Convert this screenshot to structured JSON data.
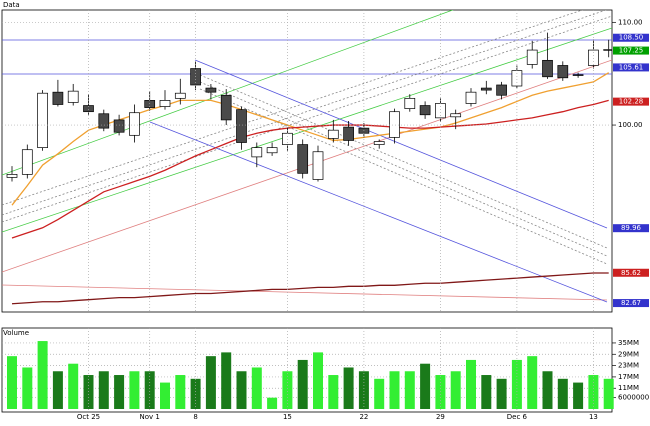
{
  "chart_data": [
    {
      "type": "candlestick",
      "title": "Data",
      "categories": [
        null,
        null,
        null,
        null,
        null,
        "Oct 25",
        null,
        null,
        null,
        "Nov 1",
        null,
        null,
        "8",
        null,
        null,
        null,
        null,
        null,
        "15",
        null,
        null,
        null,
        null,
        "22",
        null,
        null,
        null,
        null,
        "29",
        null,
        null,
        null,
        null,
        "Dec 6",
        null,
        null,
        null,
        null,
        "13",
        null
      ],
      "open": [
        94.9,
        95.2,
        97.8,
        103.2,
        102.2,
        101.9,
        101.1,
        100.5,
        99.0,
        102.4,
        101.8,
        102.6,
        105.5,
        103.6,
        102.9,
        101.5,
        96.9,
        97.3,
        98.1,
        98.1,
        94.7,
        98.7,
        99.8,
        99.7,
        98.1,
        98.8,
        101.6,
        101.9,
        100.7,
        100.8,
        102.1,
        103.6,
        103.9,
        103.8,
        105.9,
        106.3,
        105.8,
        104.9,
        105.8,
        107.3
      ],
      "high": [
        96.0,
        98.1,
        103.4,
        104.4,
        104.0,
        103.0,
        101.5,
        101.0,
        102.0,
        103.3,
        103.4,
        104.5,
        106.2,
        104.0,
        103.5,
        101.8,
        98.3,
        98.3,
        99.8,
        98.6,
        98.0,
        100.5,
        100.4,
        100.2,
        98.6,
        101.6,
        103.0,
        102.3,
        102.6,
        101.5,
        103.6,
        104.3,
        104.2,
        105.8,
        108.2,
        109.0,
        106.2,
        105.1,
        108.3,
        108.3
      ],
      "low": [
        94.5,
        94.8,
        97.5,
        101.8,
        101.9,
        101.0,
        99.4,
        99.0,
        98.3,
        101.4,
        101.5,
        102.0,
        103.4,
        102.5,
        100.0,
        97.6,
        95.9,
        97.0,
        97.5,
        94.8,
        94.5,
        98.3,
        98.0,
        98.8,
        97.7,
        98.2,
        101.3,
        100.6,
        100.3,
        99.6,
        101.8,
        103.0,
        102.5,
        103.6,
        105.5,
        104.5,
        104.3,
        104.6,
        105.5,
        106.6
      ],
      "close": [
        95.2,
        97.6,
        103.1,
        102.0,
        103.3,
        101.3,
        99.7,
        99.3,
        101.2,
        101.7,
        102.4,
        103.1,
        103.9,
        103.2,
        100.5,
        98.3,
        97.8,
        97.8,
        99.2,
        95.3,
        97.4,
        99.5,
        98.5,
        99.2,
        98.4,
        101.3,
        102.6,
        101.0,
        102.1,
        101.1,
        103.2,
        103.4,
        102.9,
        105.3,
        107.3,
        104.7,
        104.6,
        104.85,
        107.3,
        107.35
      ],
      "up_color": "#ffffff",
      "down_color": "#4a4a4a",
      "overlays": [
        {
          "color": "#f0a030",
          "values": [
            92.2,
            94.1,
            96.1,
            97.2,
            98.4,
            99.5,
            100.0,
            100.5,
            101.0,
            101.5,
            101.9,
            102.4,
            102.4,
            102.4,
            102.0,
            101.5,
            101.0,
            100.5,
            100.0,
            99.5,
            99.0,
            98.5,
            98.6,
            98.8,
            99.0,
            99.2,
            99.4,
            99.6,
            99.8,
            100.2,
            100.7,
            101.2,
            101.7,
            102.3,
            102.9,
            103.3,
            103.6,
            103.9,
            104.2,
            105.1
          ]
        },
        {
          "color": "#cc2020",
          "values": [
            89.0,
            89.5,
            90.0,
            90.8,
            91.7,
            92.6,
            93.5,
            94.0,
            94.5,
            95.0,
            95.6,
            96.3,
            97.0,
            97.6,
            98.2,
            98.8,
            99.2,
            99.5,
            99.7,
            99.8,
            99.9,
            100.0,
            100.0,
            100.0,
            99.9,
            99.8,
            99.7,
            99.7,
            99.8,
            99.9,
            100.0,
            100.1,
            100.3,
            100.5,
            100.7,
            101.0,
            101.3,
            101.7,
            102.0,
            102.4
          ]
        },
        {
          "color": "#801818",
          "values": [
            82.6,
            82.7,
            82.8,
            82.8,
            82.9,
            83.0,
            83.1,
            83.2,
            83.2,
            83.3,
            83.4,
            83.5,
            83.6,
            83.6,
            83.7,
            83.8,
            83.9,
            84.0,
            84.0,
            84.1,
            84.2,
            84.2,
            84.3,
            84.3,
            84.4,
            84.4,
            84.5,
            84.6,
            84.6,
            84.7,
            84.8,
            84.9,
            85.0,
            85.1,
            85.2,
            85.3,
            85.4,
            85.5,
            85.6,
            85.6
          ]
        }
      ],
      "ylim": [
        81.8,
        111.2
      ],
      "yticks": [
        {
          "value": 110,
          "label": "110.00"
        },
        {
          "value": 100,
          "label": "100.00"
        }
      ],
      "markers": [
        {
          "value": 108.5,
          "label": "108.50",
          "color": "#3333cc"
        },
        {
          "value": 107.25,
          "label": "107.25",
          "color": "#00a000"
        },
        {
          "value": 105.61,
          "label": "105.61",
          "color": "#3333cc"
        },
        {
          "value": 102.28,
          "label": "102.28",
          "color": "#cc2020"
        },
        {
          "value": 89.96,
          "label": "89.96",
          "color": "#3333cc"
        },
        {
          "value": 85.62,
          "label": "85.62",
          "color": "#cc2020"
        },
        {
          "value": 82.67,
          "label": "82.67",
          "color": "#3333cc"
        }
      ],
      "grid": true
    },
    {
      "type": "bar",
      "title": "Volume",
      "values": [
        28000000,
        22000000,
        36000000,
        20000000,
        24000000,
        18000000,
        20000000,
        18000000,
        20000000,
        20000000,
        14000000,
        18000000,
        16000000,
        28000000,
        30000000,
        20000000,
        22000000,
        6000000,
        20000000,
        26000000,
        30000000,
        18000000,
        22000000,
        20000000,
        16000000,
        20000000,
        20000000,
        24000000,
        18000000,
        20000000,
        26000000,
        18000000,
        16000000,
        26000000,
        28000000,
        20000000,
        16000000,
        14000000,
        18000000,
        16000000
      ],
      "up_color": "#33ee33",
      "down_color": "#1a7a1a",
      "ylim": [
        0,
        40800000
      ],
      "yticks": [
        {
          "value": 35000000,
          "label": "35MM"
        },
        {
          "value": 29000000,
          "label": "29MM"
        },
        {
          "value": 23000000,
          "label": "23MM"
        },
        {
          "value": 17000000,
          "label": "17MM"
        },
        {
          "value": 11000000,
          "label": "11MM"
        },
        6000000
      ],
      "grid": true
    }
  ]
}
